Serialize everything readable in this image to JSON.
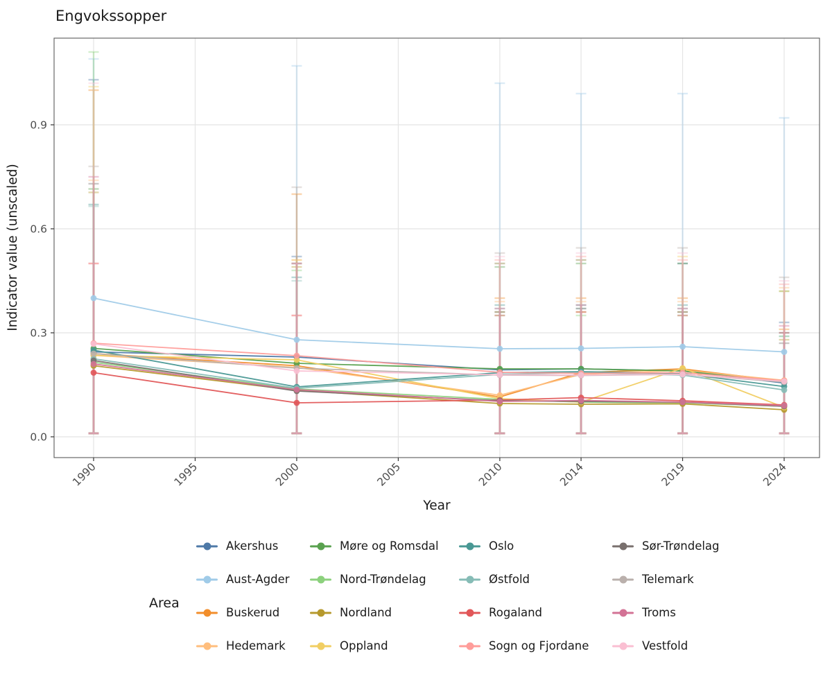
{
  "title": "Engvokssopper",
  "axes": {
    "x_label": "Year",
    "y_label": "Indicator value (unscaled)",
    "x_ticks": [
      1990,
      1995,
      2000,
      2005,
      2010,
      2014,
      2019,
      2024
    ],
    "y_ticks": [
      0.0,
      0.3,
      0.6,
      0.9
    ]
  },
  "legend": {
    "title": "Area",
    "columns": [
      [
        "Akershus",
        "Aust-Agder",
        "Buskerud",
        "Hedemark"
      ],
      [
        "Møre og Romsdal",
        "Nord-Trøndelag",
        "Nordland",
        "Oppland"
      ],
      [
        "Oslo",
        "Østfold",
        "Rogaland",
        "Sogn og Fjordane"
      ],
      [
        "Sør-Trøndelag",
        "Telemark",
        "Troms",
        "Vestfold"
      ]
    ]
  },
  "chart_data": {
    "type": "line",
    "title": "Engvokssopper",
    "xlabel": "Year",
    "ylabel": "Indicator value (unscaled)",
    "x": [
      1990,
      2000,
      2010,
      2014,
      2019,
      2024
    ],
    "x_axis_ticks": [
      1990,
      1995,
      2000,
      2005,
      2010,
      2014,
      2019,
      2024
    ],
    "ylim": [
      -0.05,
      1.15
    ],
    "grid": true,
    "legend_position": "bottom",
    "series": [
      {
        "name": "Akershus",
        "color": "#4e79a7",
        "values": [
          0.245,
          0.23,
          0.193,
          0.196,
          0.19,
          0.155
        ],
        "err_lo": [
          0.01,
          0.01,
          0.01,
          0.01,
          0.01,
          0.01
        ],
        "err_hi": [
          1.03,
          0.52,
          0.5,
          0.51,
          0.5,
          0.33
        ]
      },
      {
        "name": "Aust-Agder",
        "color": "#a0cbe8",
        "values": [
          0.4,
          0.28,
          0.254,
          0.255,
          0.26,
          0.245
        ],
        "err_lo": [
          0.01,
          0.01,
          0.01,
          0.01,
          0.01,
          0.01
        ],
        "err_hi": [
          1.09,
          1.07,
          1.02,
          0.99,
          0.99,
          0.92
        ]
      },
      {
        "name": "Buskerud",
        "color": "#f28e2b",
        "values": [
          0.24,
          0.205,
          0.115,
          0.185,
          0.196,
          0.16
        ],
        "err_lo": [
          0.01,
          0.01,
          0.01,
          0.01,
          0.01,
          0.01
        ],
        "err_hi": [
          1.0,
          0.7,
          0.4,
          0.4,
          0.4,
          0.31
        ]
      },
      {
        "name": "Hedemark",
        "color": "#ffbe7d",
        "values": [
          0.235,
          0.2,
          0.12,
          0.18,
          0.192,
          0.163
        ],
        "err_lo": [
          0.01,
          0.01,
          0.01,
          0.01,
          0.01,
          0.01
        ],
        "err_hi": [
          0.74,
          0.51,
          0.39,
          0.39,
          0.39,
          0.43
        ]
      },
      {
        "name": "Møre og Romsdal",
        "color": "#59a14f",
        "values": [
          0.255,
          0.212,
          0.196,
          0.196,
          0.19,
          0.158
        ],
        "err_lo": [
          0.01,
          0.01,
          0.01,
          0.01,
          0.01,
          0.01
        ],
        "err_hi": [
          0.715,
          0.5,
          0.49,
          0.5,
          0.5,
          0.42
        ]
      },
      {
        "name": "Nord-Trøndelag",
        "color": "#8cd17d",
        "values": [
          0.215,
          0.138,
          0.108,
          0.1,
          0.098,
          0.088
        ],
        "err_lo": [
          0.01,
          0.01,
          0.01,
          0.01,
          0.01,
          0.01
        ],
        "err_hi": [
          1.11,
          0.48,
          0.35,
          0.35,
          0.35,
          0.29
        ]
      },
      {
        "name": "Nordland",
        "color": "#b6992d",
        "values": [
          0.205,
          0.134,
          0.096,
          0.094,
          0.095,
          0.078
        ],
        "err_lo": [
          0.01,
          0.01,
          0.01,
          0.01,
          0.01,
          0.01
        ],
        "err_hi": [
          0.705,
          0.49,
          0.36,
          0.36,
          0.36,
          0.28
        ]
      },
      {
        "name": "Oppland",
        "color": "#f1ce63",
        "values": [
          0.235,
          0.222,
          0.11,
          0.1,
          0.198,
          0.085
        ],
        "err_lo": [
          0.01,
          0.01,
          0.01,
          0.01,
          0.01,
          0.01
        ],
        "err_hi": [
          1.01,
          0.51,
          0.5,
          0.51,
          0.52,
          0.42
        ]
      },
      {
        "name": "Oslo",
        "color": "#499894",
        "values": [
          0.25,
          0.144,
          0.185,
          0.188,
          0.182,
          0.145
        ],
        "err_lo": [
          0.01,
          0.01,
          0.01,
          0.01,
          0.01,
          0.01
        ],
        "err_hi": [
          0.67,
          0.46,
          0.38,
          0.38,
          0.38,
          0.3
        ]
      },
      {
        "name": "Østfold",
        "color": "#86bcb6",
        "values": [
          0.225,
          0.14,
          0.18,
          0.185,
          0.178,
          0.135
        ],
        "err_lo": [
          0.01,
          0.01,
          0.01,
          0.01,
          0.01,
          0.01
        ],
        "err_hi": [
          0.665,
          0.45,
          0.37,
          0.37,
          0.37,
          0.29
        ]
      },
      {
        "name": "Rogaland",
        "color": "#e15759",
        "values": [
          0.185,
          0.098,
          0.106,
          0.113,
          0.104,
          0.092
        ],
        "err_lo": [
          0.01,
          0.01,
          0.01,
          0.01,
          0.01,
          0.01
        ],
        "err_hi": [
          0.5,
          0.35,
          0.35,
          0.36,
          0.35,
          0.3
        ]
      },
      {
        "name": "Sogn og Fjordane",
        "color": "#ff9d9a",
        "values": [
          0.27,
          0.234,
          0.186,
          0.183,
          0.185,
          0.162
        ],
        "err_lo": [
          0.01,
          0.01,
          0.01,
          0.01,
          0.01,
          0.01
        ],
        "err_hi": [
          0.5,
          0.35,
          0.51,
          0.52,
          0.51,
          0.44
        ]
      },
      {
        "name": "Sør-Trøndelag",
        "color": "#79706e",
        "values": [
          0.22,
          0.132,
          0.104,
          0.102,
          0.1,
          0.088
        ],
        "err_lo": [
          0.01,
          0.01,
          0.01,
          0.01,
          0.01,
          0.01
        ],
        "err_hi": [
          0.73,
          0.5,
          0.36,
          0.37,
          0.36,
          0.27
        ]
      },
      {
        "name": "Telemark",
        "color": "#bab0ac",
        "values": [
          0.24,
          0.198,
          0.178,
          0.177,
          0.18,
          0.158
        ],
        "err_lo": [
          0.01,
          0.01,
          0.01,
          0.01,
          0.01,
          0.01
        ],
        "err_hi": [
          0.78,
          0.72,
          0.53,
          0.545,
          0.545,
          0.46
        ]
      },
      {
        "name": "Troms",
        "color": "#d37295",
        "values": [
          0.21,
          0.136,
          0.102,
          0.105,
          0.1,
          0.09
        ],
        "err_lo": [
          0.01,
          0.01,
          0.01,
          0.01,
          0.01,
          0.01
        ],
        "err_hi": [
          0.75,
          0.5,
          0.37,
          0.38,
          0.37,
          0.32
        ]
      },
      {
        "name": "Vestfold",
        "color": "#fabfd2",
        "values": [
          0.268,
          0.19,
          0.179,
          0.178,
          0.18,
          0.16
        ],
        "err_lo": [
          0.01,
          0.01,
          0.01,
          0.01,
          0.01,
          0.01
        ],
        "err_hi": [
          1.02,
          0.5,
          0.52,
          0.53,
          0.53,
          0.45
        ]
      }
    ]
  },
  "style": {
    "panel_border": "#595959",
    "grid_color": "#e4e4e4",
    "tick_color": "#333333",
    "tick_label_color": "#4d4d4d",
    "text_color": "#1a1a1a"
  }
}
